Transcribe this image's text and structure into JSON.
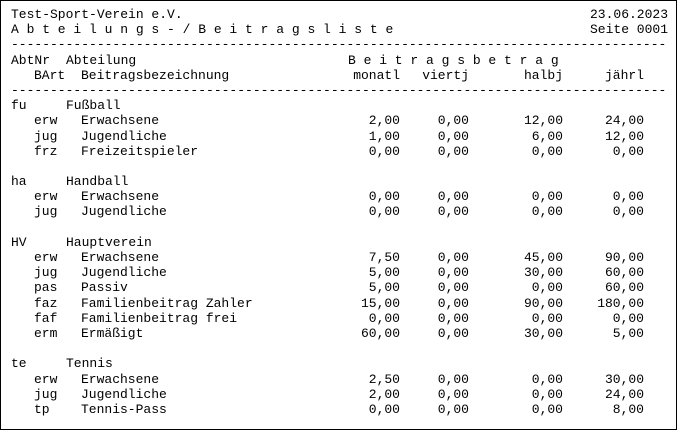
{
  "header": {
    "title": "Test-Sport-Verein e.V.",
    "date": "23.06.2023",
    "subtitle": "A b t e i l u n g s - / B e i t r a g s l i s t e",
    "page_label": "Seite 0001",
    "separator": "------------------------------------------------------------------------------------"
  },
  "table": {
    "header": {
      "abtnr_label": "AbtNr",
      "abteilung_label": "Abteilung",
      "bart_label": "BArt",
      "bezeichnung_label": "Beitragsbezeichnung",
      "amounts_group_label": "B e i t r a g s b e t r a g",
      "amount_cols": [
        "monatl",
        "viertj",
        "halbj",
        "jährl"
      ]
    },
    "sections": [
      {
        "code": "fu",
        "name": "Fußball",
        "rows": [
          {
            "code": "erw",
            "label": "Erwachsene",
            "monatl": "2,00",
            "viertj": "0,00",
            "halbj": "12,00",
            "jaehrl": "24,00"
          },
          {
            "code": "jug",
            "label": "Jugendliche",
            "monatl": "1,00",
            "viertj": "0,00",
            "halbj": "6,00",
            "jaehrl": "12,00"
          },
          {
            "code": "frz",
            "label": "Freizeitspieler",
            "monatl": "0,00",
            "viertj": "0,00",
            "halbj": "0,00",
            "jaehrl": "0,00"
          }
        ]
      },
      {
        "code": "ha",
        "name": "Handball",
        "rows": [
          {
            "code": "erw",
            "label": "Erwachsene",
            "monatl": "0,00",
            "viertj": "0,00",
            "halbj": "0,00",
            "jaehrl": "0,00"
          },
          {
            "code": "jug",
            "label": "Jugendliche",
            "monatl": "0,00",
            "viertj": "0,00",
            "halbj": "0,00",
            "jaehrl": "0,00"
          }
        ]
      },
      {
        "code": "HV",
        "name": "Hauptverein",
        "rows": [
          {
            "code": "erw",
            "label": "Erwachsene",
            "monatl": "7,50",
            "viertj": "0,00",
            "halbj": "45,00",
            "jaehrl": "90,00"
          },
          {
            "code": "jug",
            "label": "Jugendliche",
            "monatl": "5,00",
            "viertj": "0,00",
            "halbj": "30,00",
            "jaehrl": "60,00"
          },
          {
            "code": "pas",
            "label": "Passiv",
            "monatl": "5,00",
            "viertj": "0,00",
            "halbj": "0,00",
            "jaehrl": "60,00"
          },
          {
            "code": "faz",
            "label": "Familienbeitrag Zahler",
            "monatl": "15,00",
            "viertj": "0,00",
            "halbj": "90,00",
            "jaehrl": "180,00"
          },
          {
            "code": "faf",
            "label": "Familienbeitrag frei",
            "monatl": "0,00",
            "viertj": "0,00",
            "halbj": "0,00",
            "jaehrl": "0,00"
          },
          {
            "code": "erm",
            "label": "Ermäßigt",
            "monatl": "60,00",
            "viertj": "0,00",
            "halbj": "30,00",
            "jaehrl": "5,00"
          }
        ]
      },
      {
        "code": "te",
        "name": "Tennis",
        "rows": [
          {
            "code": "erw",
            "label": "Erwachsene",
            "monatl": "2,50",
            "viertj": "0,00",
            "halbj": "0,00",
            "jaehrl": "30,00"
          },
          {
            "code": "jug",
            "label": "Jugendliche",
            "monatl": "2,00",
            "viertj": "0,00",
            "halbj": "0,00",
            "jaehrl": "24,00"
          },
          {
            "code": "tp",
            "label": "Tennis-Pass",
            "monatl": "0,00",
            "viertj": "0,00",
            "halbj": "0,00",
            "jaehrl": "8,00"
          }
        ]
      }
    ]
  }
}
